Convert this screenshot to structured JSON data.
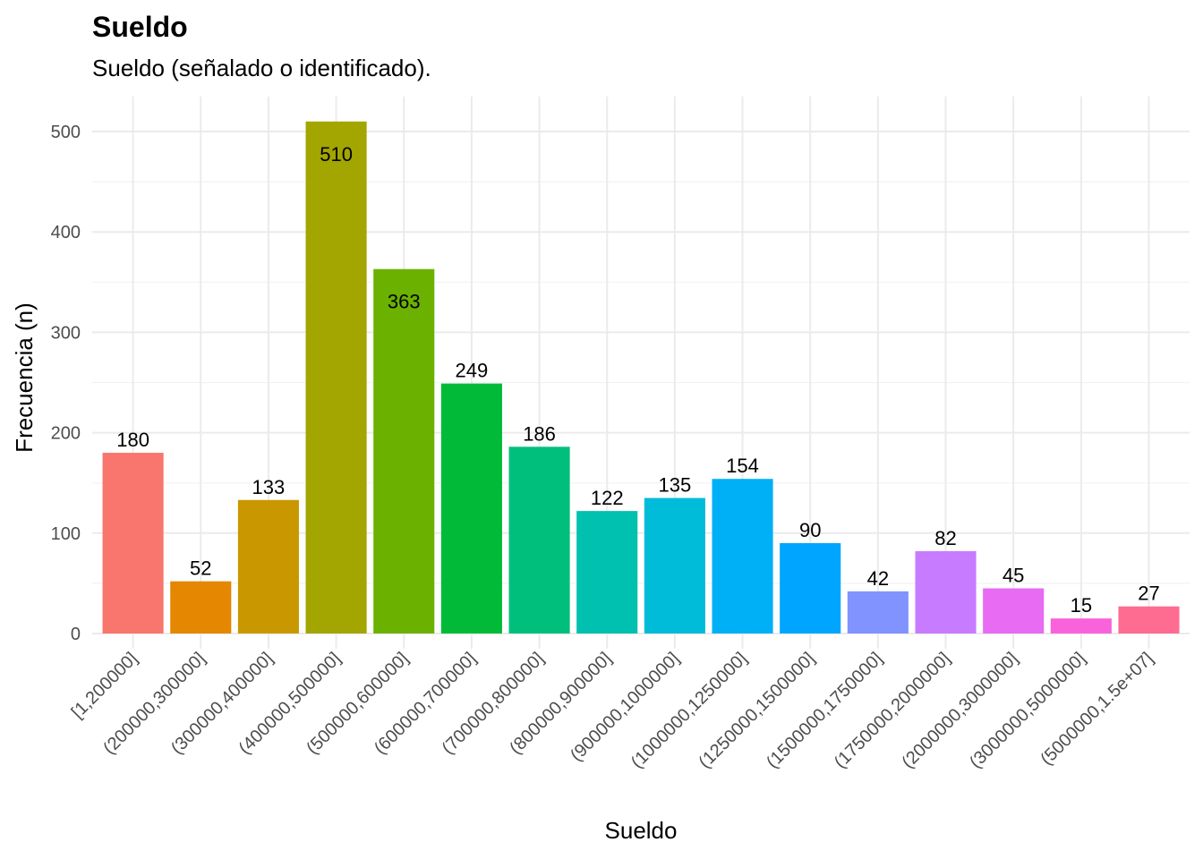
{
  "chart_data": {
    "type": "bar",
    "title": "Sueldo",
    "subtitle": "Sueldo (señalado o identificado).",
    "xlabel": "Sueldo",
    "ylabel": "Frecuencia (n)",
    "categories": [
      "[1,200000]",
      "(200000,300000]",
      "(300000,400000]",
      "(400000,500000]",
      "(500000,600000]",
      "(600000,700000]",
      "(700000,800000]",
      "(800000,900000]",
      "(900000,1000000]",
      "(1000000,1250000]",
      "(1250000,1500000]",
      "(1500000,1750000]",
      "(1750000,2000000]",
      "(2000000,3000000]",
      "(3000000,5000000]",
      "(5000000,1.5e+07]"
    ],
    "values": [
      180,
      52,
      133,
      510,
      363,
      249,
      186,
      122,
      135,
      154,
      90,
      42,
      82,
      45,
      15,
      27
    ],
    "colors": [
      "#F8766D",
      "#E58700",
      "#C99800",
      "#A3A500",
      "#6BB100",
      "#00BA38",
      "#00BF7D",
      "#00C0AF",
      "#00BCD8",
      "#00B0F6",
      "#00A5FF",
      "#8093FF",
      "#C77CFF",
      "#E76BF3",
      "#FA62DB",
      "#FF6C91"
    ],
    "ylim": [
      -15,
      535
    ],
    "yticks": [
      0,
      100,
      200,
      300,
      400,
      500
    ],
    "grid": true,
    "legend": "none"
  }
}
